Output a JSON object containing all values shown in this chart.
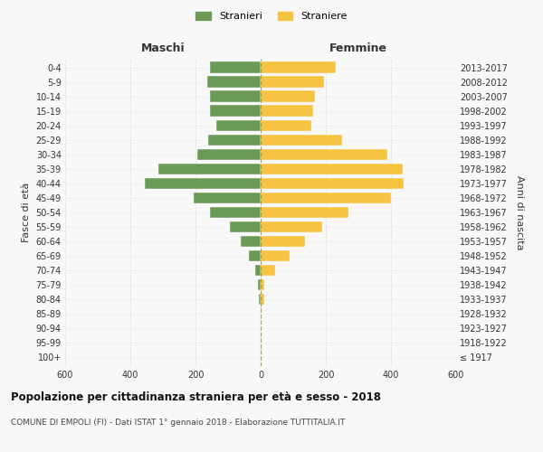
{
  "age_groups": [
    "100+",
    "95-99",
    "90-94",
    "85-89",
    "80-84",
    "75-79",
    "70-74",
    "65-69",
    "60-64",
    "55-59",
    "50-54",
    "45-49",
    "40-44",
    "35-39",
    "30-34",
    "25-29",
    "20-24",
    "15-19",
    "10-14",
    "5-9",
    "0-4"
  ],
  "birth_years": [
    "≤ 1917",
    "1918-1922",
    "1923-1927",
    "1928-1932",
    "1933-1937",
    "1938-1942",
    "1943-1947",
    "1948-1952",
    "1953-1957",
    "1958-1962",
    "1963-1967",
    "1968-1972",
    "1973-1977",
    "1978-1982",
    "1983-1987",
    "1988-1992",
    "1993-1997",
    "1998-2002",
    "2003-2007",
    "2008-2012",
    "2013-2017"
  ],
  "maschi": [
    0,
    0,
    0,
    0,
    5,
    8,
    18,
    35,
    60,
    95,
    155,
    205,
    355,
    315,
    195,
    160,
    135,
    155,
    155,
    165,
    155
  ],
  "femmine": [
    0,
    0,
    0,
    0,
    10,
    12,
    45,
    90,
    135,
    190,
    270,
    400,
    440,
    435,
    390,
    250,
    155,
    162,
    168,
    195,
    230
  ],
  "color_maschi": "#6a9a56",
  "color_femmine": "#f5c242",
  "xlim": 600,
  "title": "Popolazione per cittadinanza straniera per età e sesso - 2018",
  "subtitle": "COMUNE DI EMPOLI (FI) - Dati ISTAT 1° gennaio 2018 - Elaborazione TUTTITALIA.IT",
  "ylabel_left": "Fasce di età",
  "ylabel_right": "Anni di nascita",
  "label_maschi": "Maschi",
  "label_femmine": "Femmine",
  "legend_stranieri": "Stranieri",
  "legend_straniere": "Straniere",
  "background_color": "#f8f8f8",
  "grid_color": "#cccccc",
  "dashed_color": "#999933"
}
